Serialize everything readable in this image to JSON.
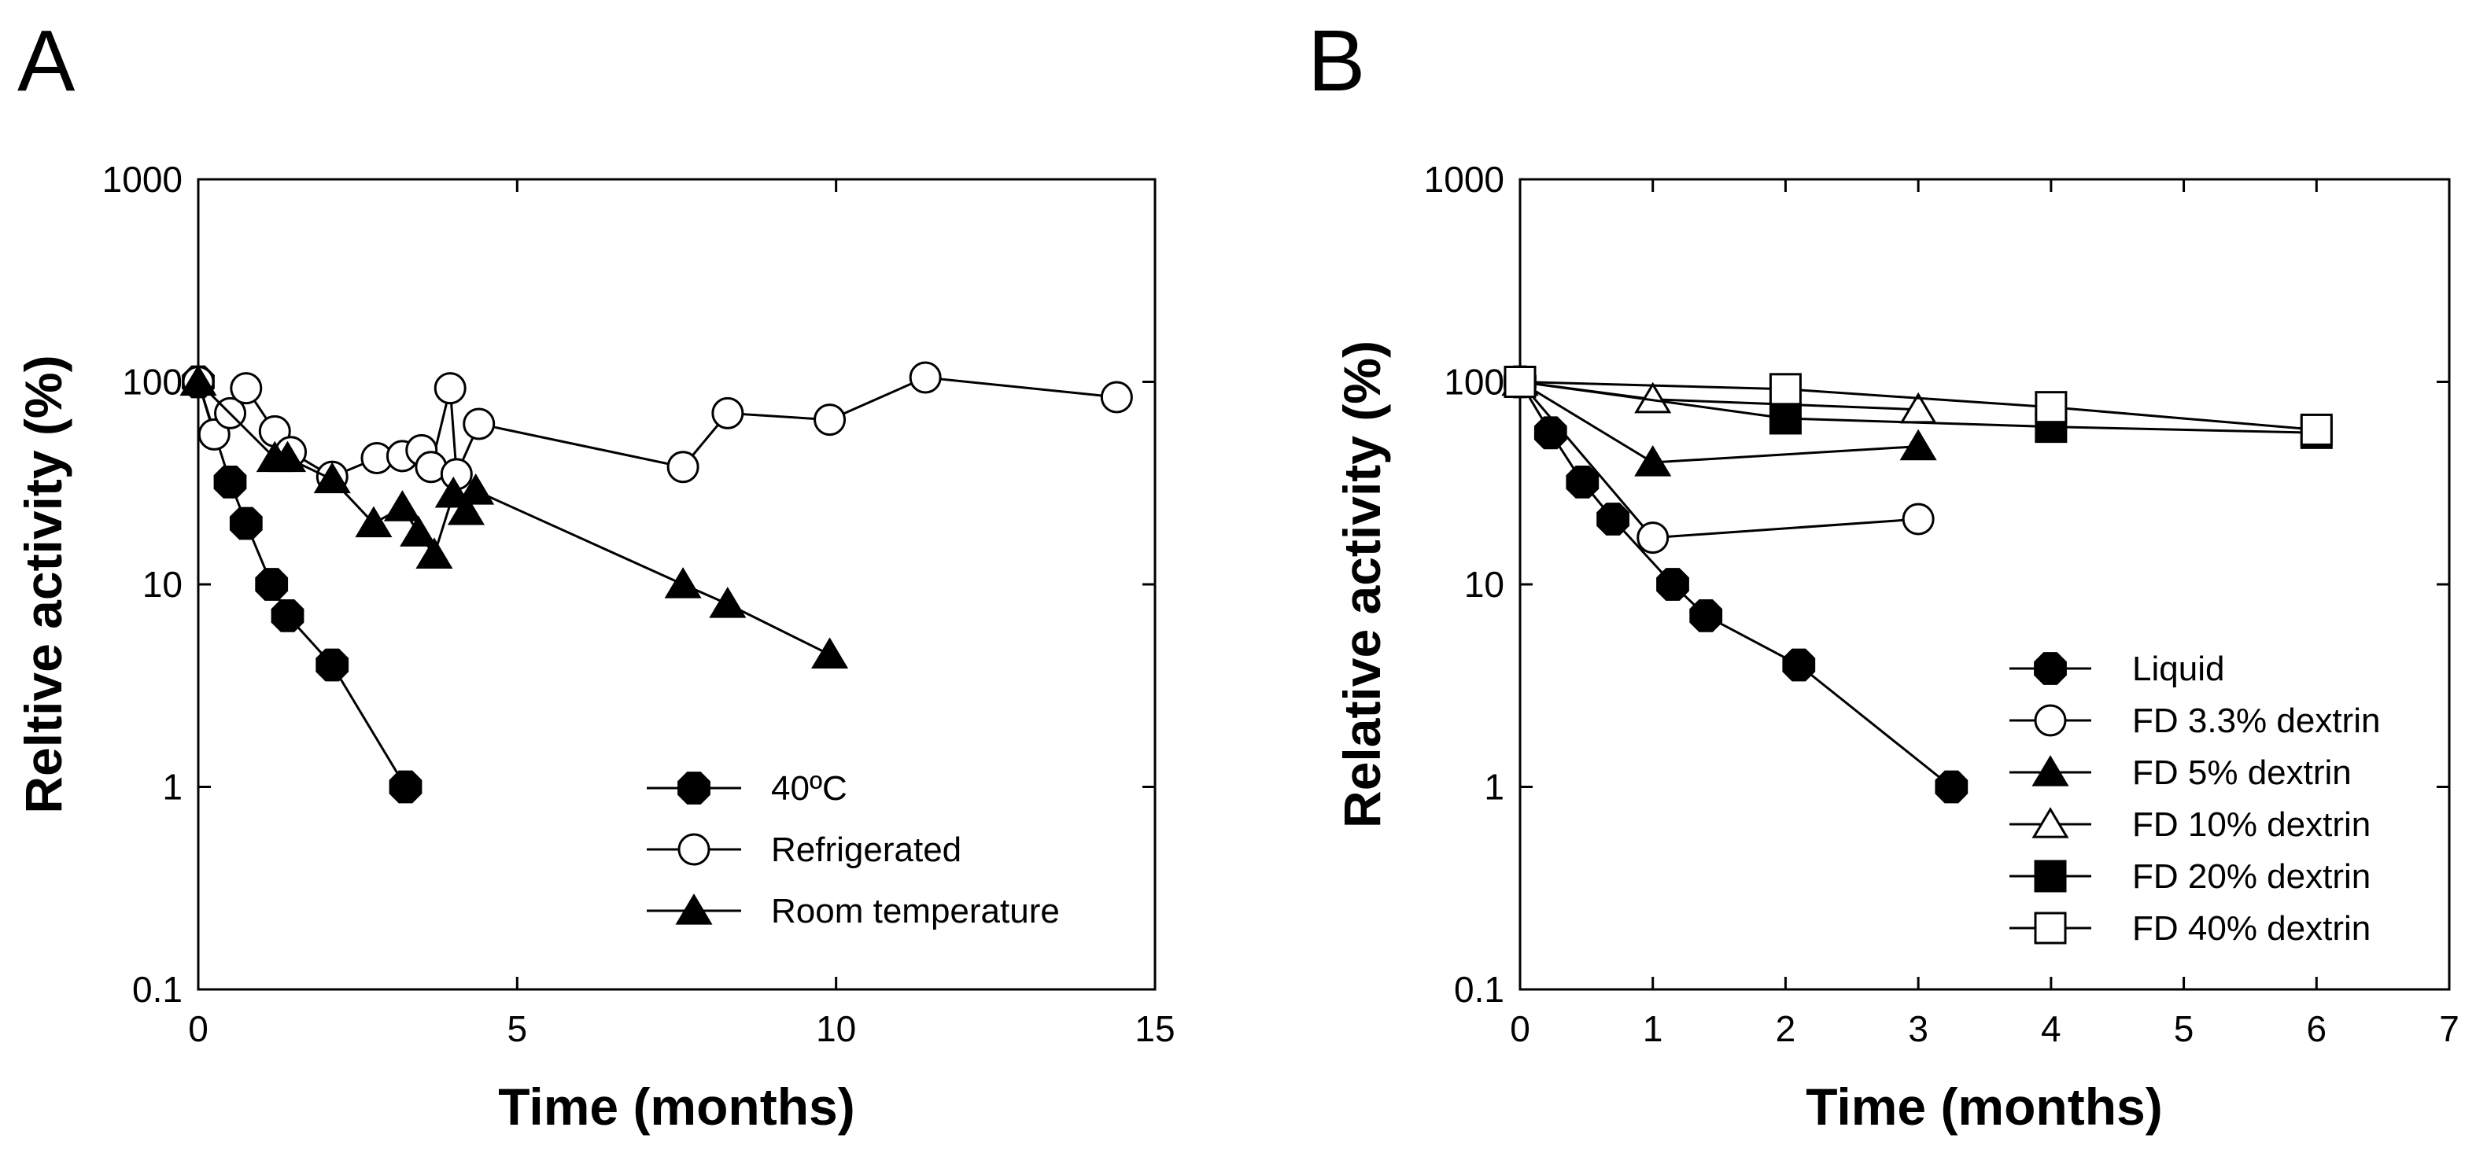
{
  "panels": [
    {
      "label": "A",
      "chart_data": {
        "type": "line",
        "yscale": "log",
        "xlabel": "Time (months)",
        "ylabel": "Reltive activity (%)",
        "xlim": [
          0,
          15
        ],
        "ylim": [
          0.1,
          1000
        ],
        "xticks": [
          0,
          5,
          10,
          15
        ],
        "yticks": [
          0.1,
          1,
          10,
          100,
          1000
        ],
        "ytick_labels": [
          "0.1",
          "1",
          "10",
          "100",
          "1000"
        ],
        "legend_position": "lower-right",
        "series": [
          {
            "name": "40ºC",
            "marker": "octagon-filled",
            "x": [
              0,
              0.5,
              0.75,
              1.15,
              1.4,
              2.1,
              3.25
            ],
            "y": [
              100,
              32,
              20,
              10,
              7,
              4,
              1
            ]
          },
          {
            "name": "Refrigerated",
            "marker": "circle-open",
            "x": [
              0,
              0.25,
              0.5,
              0.75,
              1.2,
              1.45,
              2.1,
              2.8,
              3.2,
              3.5,
              3.65,
              3.95,
              4.05,
              4.4,
              7.6,
              8.3,
              9.9,
              11.4,
              14.4
            ],
            "y": [
              100,
              55,
              70,
              93,
              57,
              45,
              34,
              42,
              43,
              46,
              38,
              93,
              35,
              62,
              38,
              70,
              65,
              105,
              84
            ]
          },
          {
            "name": "Room temperature",
            "marker": "triangle-filled",
            "x": [
              0,
              1.2,
              1.4,
              2.1,
              2.75,
              3.2,
              3.45,
              3.7,
              4.0,
              4.2,
              4.35,
              7.6,
              8.3,
              9.9
            ],
            "y": [
              100,
              42,
              42,
              33,
              20,
              24,
              18,
              14,
              28,
              23,
              29,
              10,
              8,
              4.5
            ]
          }
        ]
      }
    },
    {
      "label": "B",
      "chart_data": {
        "type": "line",
        "yscale": "log",
        "xlabel": "Time (months)",
        "ylabel": "Relative activity (%)",
        "xlim": [
          0,
          7
        ],
        "ylim": [
          0.1,
          1000
        ],
        "xticks": [
          0,
          1,
          2,
          3,
          4,
          5,
          6,
          7
        ],
        "yticks": [
          0.1,
          1,
          10,
          100,
          1000
        ],
        "ytick_labels": [
          "0.1",
          "1",
          "10",
          "100",
          "1000"
        ],
        "legend_position": "lower-right",
        "series": [
          {
            "name": "Liquid",
            "marker": "octagon-filled",
            "x": [
              0,
              0.23,
              0.47,
              0.7,
              1.15,
              1.4,
              2.1,
              3.25
            ],
            "y": [
              100,
              56,
              32,
              21,
              10,
              7,
              4,
              1
            ]
          },
          {
            "name": "FD 3.3% dextrin",
            "marker": "circle-open",
            "x": [
              0,
              1,
              3
            ],
            "y": [
              100,
              17,
              21
            ]
          },
          {
            "name": "FD 5% dextrin",
            "marker": "triangle-filled",
            "x": [
              0,
              1,
              3
            ],
            "y": [
              100,
              40,
              48
            ]
          },
          {
            "name": "FD 10% dextrin",
            "marker": "triangle-open",
            "x": [
              0,
              1,
              3
            ],
            "y": [
              100,
              82,
              73
            ]
          },
          {
            "name": "FD 20% dextrin",
            "marker": "square-filled",
            "x": [
              0,
              2,
              4,
              6
            ],
            "y": [
              100,
              66,
              60,
              56
            ]
          },
          {
            "name": "FD 40% dextrin",
            "marker": "square-open",
            "x": [
              0,
              2,
              4,
              6
            ],
            "y": [
              100,
              92,
              75,
              58
            ]
          }
        ]
      }
    }
  ]
}
